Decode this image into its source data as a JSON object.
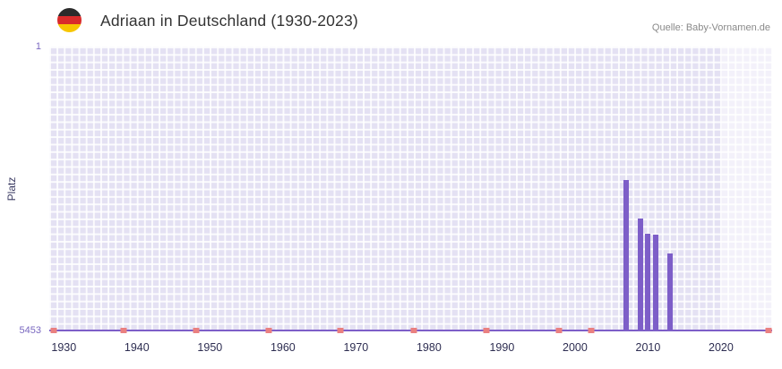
{
  "header": {
    "title": "Adriaan in Deutschland (1930-2023)",
    "source": "Quelle: Baby-Vornamen.de"
  },
  "colors": {
    "bar": "#7d5ec8",
    "axis_line": "#7d5ec8",
    "plot_background": "#e4e1f3",
    "grid_line": "rgba(255,255,255,0.85)",
    "recent_band": "rgba(255,255,255,0.55)",
    "marker": "#ea8080",
    "x_tick_label": "#2e2e52",
    "y_tick_label": "#7a68c0",
    "y_axis_title": "#3c3c64",
    "title_text": "#333333",
    "source_text": "#8a8a8a",
    "flag_black": "#2b2b2b",
    "flag_red": "#d92b2b",
    "flag_gold": "#f7c600"
  },
  "chart_data": {
    "type": "bar",
    "title": "Adriaan in Deutschland (1930-2023)",
    "source": "Quelle: Baby-Vornamen.de",
    "ylabel": "Platz",
    "xlabel": "",
    "grid": true,
    "legend": "none",
    "y_axis": {
      "min": 1,
      "max": 5453,
      "inverted": true,
      "tick_labels": [
        "1",
        "5453"
      ]
    },
    "x_axis": {
      "range": [
        1928,
        2027
      ],
      "ticks": [
        1930,
        1940,
        1950,
        1960,
        1970,
        1980,
        1990,
        2000,
        2010,
        2020
      ]
    },
    "series": [
      {
        "name": "Platz",
        "points": [
          {
            "year": 2007,
            "rank": 2570
          },
          {
            "year": 2009,
            "rank": 3310
          },
          {
            "year": 2010,
            "rank": 3600
          },
          {
            "year": 2011,
            "rank": 3620
          },
          {
            "year": 2013,
            "rank": 3990
          }
        ]
      }
    ],
    "highlight_band": {
      "from_pct": 93,
      "to_pct": 100
    },
    "axis_marker_positions_pct": [
      0.6,
      10.3,
      20.3,
      30.4,
      40.3,
      50.4,
      60.5,
      70.5,
      75.0,
      99.5
    ]
  }
}
